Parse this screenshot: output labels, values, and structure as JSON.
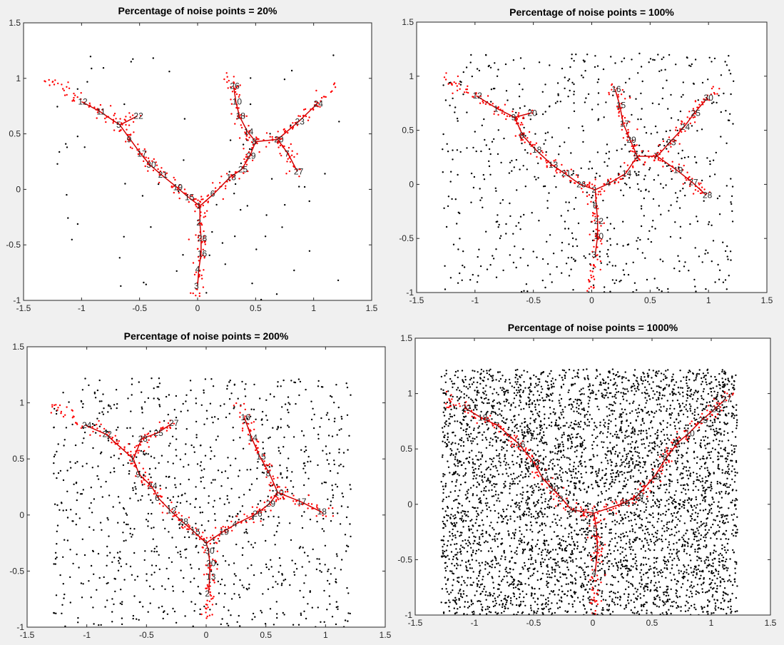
{
  "figure": {
    "background": "#f0f0f0",
    "axes_background": "#ffffff"
  },
  "colors": {
    "noise": "#000000",
    "data": "#ff0000",
    "skeleton": "#d40000",
    "node_label": "#262626"
  },
  "chart_data": [
    {
      "type": "scatter",
      "title": "Percentage of noise points = 20%",
      "noise_percent": 20,
      "xlim": [
        -1.5,
        1.5
      ],
      "ylim": [
        -1,
        1.5
      ],
      "xticks": [
        "-1.5",
        "-1",
        "-0.5",
        "0",
        "0.5",
        "1",
        "1.5"
      ],
      "yticks": [
        "-1",
        "-0.5",
        "0",
        "0.5",
        "1",
        "1.5"
      ],
      "grid": false,
      "nodes": [
        {
          "label": "1",
          "x": 0.02,
          "y": -0.15
        },
        {
          "label": "2",
          "x": 0.02,
          "y": -0.3
        },
        {
          "label": "28",
          "x": 0.03,
          "y": -0.44
        },
        {
          "label": "16",
          "x": 0.03,
          "y": -0.58
        },
        {
          "label": "4",
          "x": 0.01,
          "y": -0.72
        },
        {
          "label": "3",
          "x": 0.0,
          "y": -0.87
        },
        {
          "label": "15",
          "x": -0.08,
          "y": -0.07
        },
        {
          "label": "19",
          "x": -0.18,
          "y": 0.02
        },
        {
          "label": "21",
          "x": -0.31,
          "y": 0.13
        },
        {
          "label": "30",
          "x": -0.41,
          "y": 0.22
        },
        {
          "label": "17",
          "x": -0.49,
          "y": 0.32
        },
        {
          "label": "9",
          "x": -0.58,
          "y": 0.45
        },
        {
          "label": "5",
          "x": -0.67,
          "y": 0.58
        },
        {
          "label": "22",
          "x": -0.52,
          "y": 0.66
        },
        {
          "label": "11",
          "x": -0.84,
          "y": 0.7
        },
        {
          "label": "12",
          "x": -1.0,
          "y": 0.79
        },
        {
          "label": "6",
          "x": 0.14,
          "y": -0.04
        },
        {
          "label": "13",
          "x": 0.28,
          "y": 0.11
        },
        {
          "label": "25",
          "x": 0.38,
          "y": 0.18
        },
        {
          "label": "29",
          "x": 0.45,
          "y": 0.3
        },
        {
          "label": "8",
          "x": 0.5,
          "y": 0.43
        },
        {
          "label": "14",
          "x": 0.43,
          "y": 0.52
        },
        {
          "label": "18",
          "x": 0.36,
          "y": 0.66
        },
        {
          "label": "10",
          "x": 0.33,
          "y": 0.79
        },
        {
          "label": "26",
          "x": 0.31,
          "y": 0.93
        },
        {
          "label": "20",
          "x": 0.69,
          "y": 0.45
        },
        {
          "label": "23",
          "x": 0.87,
          "y": 0.61
        },
        {
          "label": "24",
          "x": 1.03,
          "y": 0.77
        },
        {
          "label": "7",
          "x": 0.78,
          "y": 0.32
        },
        {
          "label": "27",
          "x": 0.86,
          "y": 0.16
        }
      ],
      "edges": [
        [
          "3",
          "4"
        ],
        [
          "4",
          "16"
        ],
        [
          "16",
          "28"
        ],
        [
          "28",
          "2"
        ],
        [
          "2",
          "1"
        ],
        [
          "1",
          "15"
        ],
        [
          "15",
          "19"
        ],
        [
          "19",
          "21"
        ],
        [
          "21",
          "30"
        ],
        [
          "30",
          "17"
        ],
        [
          "17",
          "9"
        ],
        [
          "9",
          "5"
        ],
        [
          "5",
          "22"
        ],
        [
          "5",
          "11"
        ],
        [
          "11",
          "12"
        ],
        [
          "1",
          "6"
        ],
        [
          "6",
          "13"
        ],
        [
          "13",
          "25"
        ],
        [
          "25",
          "29"
        ],
        [
          "29",
          "8"
        ],
        [
          "8",
          "14"
        ],
        [
          "14",
          "18"
        ],
        [
          "18",
          "10"
        ],
        [
          "10",
          "26"
        ],
        [
          "8",
          "20"
        ],
        [
          "20",
          "23"
        ],
        [
          "23",
          "24"
        ],
        [
          "20",
          "7"
        ],
        [
          "7",
          "27"
        ]
      ],
      "skeleton_tips": {
        "12": [
          -1.28,
          0.98
        ],
        "26": [
          0.26,
          1.05
        ],
        "24": [
          1.18,
          0.92
        ],
        "27": [
          0.9,
          0.12
        ],
        "3": [
          0.0,
          -0.98
        ]
      },
      "noise_count": 78
    },
    {
      "type": "scatter",
      "title": "Percentage of noise points = 100%",
      "noise_percent": 100,
      "xlim": [
        -1.5,
        1.5
      ],
      "ylim": [
        -1,
        1.5
      ],
      "xticks": [
        "-1.5",
        "-1",
        "-0.5",
        "0",
        "0.5",
        "1",
        "1.5"
      ],
      "yticks": [
        "-1",
        "-0.5",
        "0",
        "0.5",
        "1",
        "1.5"
      ],
      "grid": false,
      "nodes": [
        {
          "label": "2",
          "x": 0.03,
          "y": -0.05
        },
        {
          "label": "6",
          "x": 0.04,
          "y": -0.2
        },
        {
          "label": "22",
          "x": 0.05,
          "y": -0.34
        },
        {
          "label": "10",
          "x": 0.05,
          "y": -0.48
        },
        {
          "label": "3",
          "x": 0.03,
          "y": -0.65
        },
        {
          "label": "26",
          "x": -0.1,
          "y": 0.0
        },
        {
          "label": "21",
          "x": -0.23,
          "y": 0.1
        },
        {
          "label": "13",
          "x": -0.34,
          "y": 0.18
        },
        {
          "label": "18",
          "x": -0.48,
          "y": 0.32
        },
        {
          "label": "8",
          "x": -0.59,
          "y": 0.45
        },
        {
          "label": "9",
          "x": -0.66,
          "y": 0.62
        },
        {
          "label": "20",
          "x": -0.52,
          "y": 0.66
        },
        {
          "label": "1",
          "x": -0.81,
          "y": 0.7
        },
        {
          "label": "12",
          "x": -0.99,
          "y": 0.82
        },
        {
          "label": "4",
          "x": 0.15,
          "y": 0.01
        },
        {
          "label": "14",
          "x": 0.29,
          "y": 0.1
        },
        {
          "label": "5",
          "x": 0.39,
          "y": 0.26
        },
        {
          "label": "29",
          "x": 0.33,
          "y": 0.41
        },
        {
          "label": "17",
          "x": 0.27,
          "y": 0.56
        },
        {
          "label": "15",
          "x": 0.24,
          "y": 0.73
        },
        {
          "label": "16",
          "x": 0.2,
          "y": 0.88
        },
        {
          "label": "7",
          "x": 0.56,
          "y": 0.26
        },
        {
          "label": "23",
          "x": 0.67,
          "y": 0.39
        },
        {
          "label": "24",
          "x": 0.79,
          "y": 0.53
        },
        {
          "label": "25",
          "x": 0.88,
          "y": 0.66
        },
        {
          "label": "30",
          "x": 0.99,
          "y": 0.8
        },
        {
          "label": "19",
          "x": 0.73,
          "y": 0.13
        },
        {
          "label": "27",
          "x": 0.86,
          "y": 0.02
        },
        {
          "label": "28",
          "x": 0.98,
          "y": -0.1
        }
      ],
      "edges": [
        [
          "3",
          "10"
        ],
        [
          "10",
          "22"
        ],
        [
          "22",
          "6"
        ],
        [
          "6",
          "2"
        ],
        [
          "2",
          "26"
        ],
        [
          "26",
          "21"
        ],
        [
          "21",
          "13"
        ],
        [
          "13",
          "18"
        ],
        [
          "18",
          "8"
        ],
        [
          "8",
          "9"
        ],
        [
          "9",
          "20"
        ],
        [
          "9",
          "1"
        ],
        [
          "1",
          "12"
        ],
        [
          "2",
          "4"
        ],
        [
          "4",
          "14"
        ],
        [
          "14",
          "5"
        ],
        [
          "5",
          "29"
        ],
        [
          "29",
          "17"
        ],
        [
          "17",
          "15"
        ],
        [
          "15",
          "16"
        ],
        [
          "5",
          "7"
        ],
        [
          "7",
          "23"
        ],
        [
          "23",
          "24"
        ],
        [
          "24",
          "25"
        ],
        [
          "25",
          "30"
        ],
        [
          "7",
          "19"
        ],
        [
          "19",
          "27"
        ],
        [
          "27",
          "28"
        ]
      ],
      "skeleton_tips": {
        "12": [
          -1.28,
          0.98
        ],
        "16": [
          0.2,
          0.93
        ],
        "30": [
          1.08,
          0.9
        ],
        "28": [
          1.0,
          -0.1
        ],
        "3": [
          0.0,
          -0.98
        ]
      },
      "noise_count": 640
    },
    {
      "type": "scatter",
      "title": "Percentage of noise points = 200%",
      "noise_percent": 200,
      "xlim": [
        -1.5,
        1.5
      ],
      "ylim": [
        -1,
        1.5
      ],
      "xticks": [
        "-1.5",
        "-1",
        "-0.5",
        "0",
        "0.5",
        "1",
        "1.5"
      ],
      "yticks": [
        "-1",
        "-0.5",
        "0",
        "0.5",
        "1",
        "1.5"
      ],
      "grid": false,
      "nodes": [
        {
          "label": "3",
          "x": 0.0,
          "y": -0.25
        },
        {
          "label": "30",
          "x": 0.02,
          "y": -0.32
        },
        {
          "label": "20",
          "x": 0.03,
          "y": -0.43
        },
        {
          "label": "13",
          "x": 0.03,
          "y": -0.55
        },
        {
          "label": "2",
          "x": 0.02,
          "y": -0.7
        },
        {
          "label": "15",
          "x": -0.1,
          "y": -0.15
        },
        {
          "label": "28",
          "x": -0.2,
          "y": -0.06
        },
        {
          "label": "12",
          "x": -0.3,
          "y": 0.04
        },
        {
          "label": "6",
          "x": -0.4,
          "y": 0.15
        },
        {
          "label": "24",
          "x": -0.46,
          "y": 0.26
        },
        {
          "label": "9",
          "x": -0.56,
          "y": 0.36
        },
        {
          "label": "1",
          "x": -0.61,
          "y": 0.5
        },
        {
          "label": "23",
          "x": -0.54,
          "y": 0.68
        },
        {
          "label": "25",
          "x": -0.41,
          "y": 0.73
        },
        {
          "label": "27",
          "x": -0.28,
          "y": 0.82
        },
        {
          "label": "22",
          "x": -0.84,
          "y": 0.72
        },
        {
          "label": "24",
          "x": -1.01,
          "y": 0.8
        },
        {
          "label": "19",
          "x": 0.14,
          "y": -0.15
        },
        {
          "label": "4",
          "x": 0.25,
          "y": -0.08
        },
        {
          "label": "26",
          "x": 0.42,
          "y": 0.01
        },
        {
          "label": "29",
          "x": 0.53,
          "y": 0.1
        },
        {
          "label": "10",
          "x": 0.6,
          "y": 0.2
        },
        {
          "label": "8",
          "x": 0.53,
          "y": 0.37
        },
        {
          "label": "15",
          "x": 0.45,
          "y": 0.52
        },
        {
          "label": "14",
          "x": 0.38,
          "y": 0.69
        },
        {
          "label": "16",
          "x": 0.32,
          "y": 0.87
        },
        {
          "label": "17",
          "x": 0.79,
          "y": 0.12
        },
        {
          "label": "18",
          "x": 0.96,
          "y": 0.03
        }
      ],
      "edges": [
        [
          0,
          1
        ],
        [
          1,
          2
        ],
        [
          2,
          3
        ],
        [
          3,
          4
        ],
        [
          0,
          5
        ],
        [
          5,
          6
        ],
        [
          6,
          7
        ],
        [
          7,
          8
        ],
        [
          8,
          9
        ],
        [
          9,
          10
        ],
        [
          10,
          11
        ],
        [
          11,
          12
        ],
        [
          12,
          13
        ],
        [
          13,
          14
        ],
        [
          11,
          15
        ],
        [
          15,
          16
        ],
        [
          0,
          17
        ],
        [
          17,
          18
        ],
        [
          18,
          19
        ],
        [
          19,
          20
        ],
        [
          20,
          21
        ],
        [
          21,
          22
        ],
        [
          22,
          23
        ],
        [
          23,
          24
        ],
        [
          24,
          25
        ],
        [
          21,
          26
        ],
        [
          26,
          27
        ]
      ],
      "skeleton_tips": {
        "24": [
          -1.28,
          0.98
        ],
        "16": [
          0.3,
          0.98
        ],
        "18": [
          1.05,
          0.02
        ],
        "2": [
          0.0,
          -0.98
        ]
      },
      "noise_count": 950
    },
    {
      "type": "scatter",
      "title": "Percentage of noise points = 1000%",
      "noise_percent": 1000,
      "xlim": [
        -1.5,
        1.5
      ],
      "ylim": [
        -1,
        1.5
      ],
      "xticks": [
        "-1.5",
        "-1",
        "-0.5",
        "0",
        "0.5",
        "1",
        "1.5"
      ],
      "yticks": [
        "-1",
        "-0.5",
        "0",
        "0.5",
        "1",
        "1.5"
      ],
      "grid": false,
      "nodes": [
        {
          "label": "1",
          "x": 0.01,
          "y": -0.08
        },
        {
          "label": "5",
          "x": 0.03,
          "y": -0.22
        },
        {
          "label": "2",
          "x": 0.04,
          "y": -0.4
        },
        {
          "label": "4",
          "x": 0.02,
          "y": -0.62
        },
        {
          "label": "24",
          "x": -0.18,
          "y": -0.05
        },
        {
          "label": "3",
          "x": -0.26,
          "y": 0.05
        },
        {
          "label": "30",
          "x": -0.34,
          "y": 0.14
        },
        {
          "label": "14",
          "x": -0.42,
          "y": 0.23
        },
        {
          "label": "12",
          "x": -0.5,
          "y": 0.38
        },
        {
          "label": "16",
          "x": -0.62,
          "y": 0.54
        },
        {
          "label": "7",
          "x": -0.8,
          "y": 0.71
        },
        {
          "label": "18",
          "x": -0.94,
          "y": 0.78
        },
        {
          "label": "22",
          "x": -1.08,
          "y": 0.87
        },
        {
          "label": "28",
          "x": 0.26,
          "y": 0.01
        },
        {
          "label": "29",
          "x": 0.38,
          "y": 0.08
        },
        {
          "label": "19",
          "x": 0.52,
          "y": 0.25
        },
        {
          "label": "8",
          "x": 0.62,
          "y": 0.42
        },
        {
          "label": "6",
          "x": 0.72,
          "y": 0.56
        },
        {
          "label": "10",
          "x": 0.81,
          "y": 0.64
        },
        {
          "label": "25",
          "x": 0.92,
          "y": 0.76
        },
        {
          "label": "26",
          "x": 1.03,
          "y": 0.86
        },
        {
          "label": "27",
          "x": 1.12,
          "y": 0.95
        }
      ],
      "edges": [
        [
          0,
          1
        ],
        [
          1,
          2
        ],
        [
          2,
          3
        ],
        [
          0,
          4
        ],
        [
          4,
          5
        ],
        [
          5,
          6
        ],
        [
          6,
          7
        ],
        [
          7,
          8
        ],
        [
          8,
          9
        ],
        [
          9,
          10
        ],
        [
          10,
          11
        ],
        [
          11,
          12
        ],
        [
          0,
          13
        ],
        [
          13,
          14
        ],
        [
          14,
          15
        ],
        [
          15,
          16
        ],
        [
          16,
          17
        ],
        [
          17,
          18
        ],
        [
          18,
          19
        ],
        [
          19,
          20
        ],
        [
          20,
          21
        ]
      ],
      "skeleton_tips": {
        "22": [
          -1.28,
          0.98
        ],
        "27": [
          1.2,
          1.0
        ],
        "4": [
          0.0,
          -0.98
        ]
      },
      "noise_count": 4600
    }
  ]
}
